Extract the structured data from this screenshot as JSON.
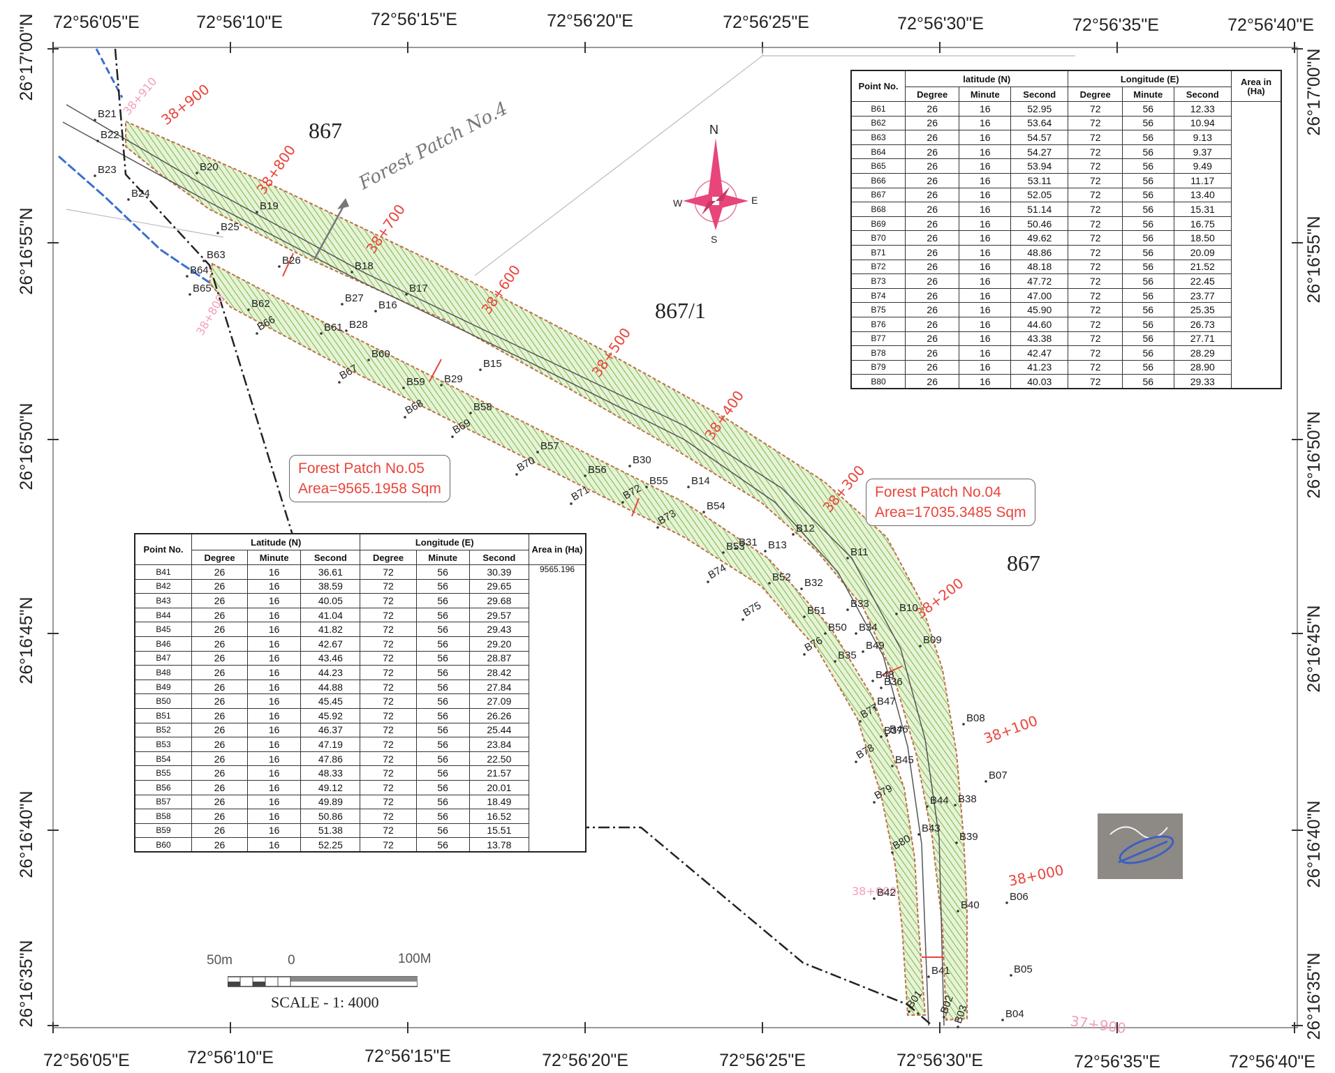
{
  "frame": {
    "top_lon_labels": [
      "72°56'05\"E",
      "72°56'10\"E",
      "72°56'15\"E",
      "72°56'20\"E",
      "72°56'25\"E",
      "72°56'30\"E",
      "72°56'35\"E",
      "72°56'40\"E"
    ],
    "bottom_lon_labels": [
      "72°56'05\"E",
      "72°56'10\"E",
      "72°56'15\"E",
      "72°56'20\"E",
      "72°56'25\"E",
      "72°56'30\"E",
      "72°56'35\"E",
      "72°56'40\"E"
    ],
    "left_lat_labels": [
      "26°17'00\"N",
      "26°16'55\"N",
      "26°16'50\"N",
      "26°16'45\"N",
      "26°16'40\"N",
      "26°16'35\"N"
    ],
    "right_lat_labels": [
      "26°17'00\"N",
      "26°16'55\"N",
      "26°16'50\"N",
      "26°16'45\"N",
      "26°16'40\"N",
      "26°16'35\"N"
    ]
  },
  "parcels": [
    "867",
    "867/1",
    "867"
  ],
  "handwritten_note": "Forest Patch No.4",
  "compass": {
    "n": "N",
    "s": "S",
    "e": "E",
    "w": "W"
  },
  "chainages": [
    "38+900",
    "38+800",
    "38+700",
    "38+600",
    "38+500",
    "38+400",
    "38+300",
    "38+200",
    "38+100",
    "38+000",
    "37+900"
  ],
  "chainages_pink": [
    "38+910",
    "38+800",
    "38+000",
    "37+900"
  ],
  "points_outer": [
    "B21",
    "B22",
    "B23",
    "B24",
    "B20",
    "B19",
    "B25",
    "B26",
    "B18",
    "B17",
    "B27",
    "B16",
    "B28",
    "B15",
    "B29",
    "B30",
    "B14",
    "B13",
    "B31",
    "B12",
    "B11",
    "B32",
    "B33",
    "B10",
    "B34",
    "B09",
    "B35",
    "B36",
    "B08",
    "B37",
    "B07",
    "B38",
    "B39",
    "B06",
    "B40",
    "B05",
    "B41",
    "B04",
    "B02",
    "B03",
    "B01"
  ],
  "points_inner": [
    "B63",
    "B64",
    "B65",
    "B62",
    "B66",
    "B61",
    "B60",
    "B67",
    "B59",
    "B68",
    "B58",
    "B69",
    "B57",
    "B70",
    "B56",
    "B71",
    "B55",
    "B72",
    "B54",
    "B73",
    "B53",
    "B74",
    "B52",
    "B75",
    "B51",
    "B50",
    "B76",
    "B49",
    "B48",
    "B77",
    "B47",
    "B46",
    "B78",
    "B45",
    "B79",
    "B44",
    "B43",
    "B80",
    "B42"
  ],
  "patch05": {
    "line1": "Forest Patch No.05",
    "line2": "Area=9565.1958 Sqm"
  },
  "patch04": {
    "line1": "Forest Patch No.04",
    "line2": "Area=17035.3485 Sqm"
  },
  "table_left": {
    "headers": {
      "point": "Point No.",
      "lat": "Latitude (N)",
      "lon": "Longitude (E)",
      "area": "Area in (Ha)",
      "deg": "Degree",
      "min": "Minute",
      "sec": "Second"
    },
    "area_value": "9565.196",
    "rows": [
      [
        "B41",
        "26",
        "16",
        "36.61",
        "72",
        "56",
        "30.39"
      ],
      [
        "B42",
        "26",
        "16",
        "38.59",
        "72",
        "56",
        "29.65"
      ],
      [
        "B43",
        "26",
        "16",
        "40.05",
        "72",
        "56",
        "29.68"
      ],
      [
        "B44",
        "26",
        "16",
        "41.04",
        "72",
        "56",
        "29.57"
      ],
      [
        "B45",
        "26",
        "16",
        "41.82",
        "72",
        "56",
        "29.43"
      ],
      [
        "B46",
        "26",
        "16",
        "42.67",
        "72",
        "56",
        "29.20"
      ],
      [
        "B47",
        "26",
        "16",
        "43.46",
        "72",
        "56",
        "28.87"
      ],
      [
        "B48",
        "26",
        "16",
        "44.23",
        "72",
        "56",
        "28.42"
      ],
      [
        "B49",
        "26",
        "16",
        "44.88",
        "72",
        "56",
        "27.84"
      ],
      [
        "B50",
        "26",
        "16",
        "45.45",
        "72",
        "56",
        "27.09"
      ],
      [
        "B51",
        "26",
        "16",
        "45.92",
        "72",
        "56",
        "26.26"
      ],
      [
        "B52",
        "26",
        "16",
        "46.37",
        "72",
        "56",
        "25.44"
      ],
      [
        "B53",
        "26",
        "16",
        "47.19",
        "72",
        "56",
        "23.84"
      ],
      [
        "B54",
        "26",
        "16",
        "47.86",
        "72",
        "56",
        "22.50"
      ],
      [
        "B55",
        "26",
        "16",
        "48.33",
        "72",
        "56",
        "21.57"
      ],
      [
        "B56",
        "26",
        "16",
        "49.12",
        "72",
        "56",
        "20.01"
      ],
      [
        "B57",
        "26",
        "16",
        "49.89",
        "72",
        "56",
        "18.49"
      ],
      [
        "B58",
        "26",
        "16",
        "50.86",
        "72",
        "56",
        "16.52"
      ],
      [
        "B59",
        "26",
        "16",
        "51.38",
        "72",
        "56",
        "15.51"
      ],
      [
        "B60",
        "26",
        "16",
        "52.25",
        "72",
        "56",
        "13.78"
      ]
    ]
  },
  "table_right": {
    "headers": {
      "point": "Point No.",
      "lat": "latitude (N)",
      "lon": "Longitude (E)",
      "area": "Area in (Ha)",
      "deg": "Degree",
      "min": "Minute",
      "sec": "Second"
    },
    "area_value": "",
    "rows": [
      [
        "B61",
        "26",
        "16",
        "52.95",
        "72",
        "56",
        "12.33"
      ],
      [
        "B62",
        "26",
        "16",
        "53.64",
        "72",
        "56",
        "10.94"
      ],
      [
        "B63",
        "26",
        "16",
        "54.57",
        "72",
        "56",
        "9.13"
      ],
      [
        "B64",
        "26",
        "16",
        "54.27",
        "72",
        "56",
        "9.37"
      ],
      [
        "B65",
        "26",
        "16",
        "53.94",
        "72",
        "56",
        "9.49"
      ],
      [
        "B66",
        "26",
        "16",
        "53.11",
        "72",
        "56",
        "11.17"
      ],
      [
        "B67",
        "26",
        "16",
        "52.05",
        "72",
        "56",
        "13.40"
      ],
      [
        "B68",
        "26",
        "16",
        "51.14",
        "72",
        "56",
        "15.31"
      ],
      [
        "B69",
        "26",
        "16",
        "50.46",
        "72",
        "56",
        "16.75"
      ],
      [
        "B70",
        "26",
        "16",
        "49.62",
        "72",
        "56",
        "18.50"
      ],
      [
        "B71",
        "26",
        "16",
        "48.86",
        "72",
        "56",
        "20.09"
      ],
      [
        "B72",
        "26",
        "16",
        "48.18",
        "72",
        "56",
        "21.52"
      ],
      [
        "B73",
        "26",
        "16",
        "47.72",
        "72",
        "56",
        "22.45"
      ],
      [
        "B74",
        "26",
        "16",
        "47.00",
        "72",
        "56",
        "23.77"
      ],
      [
        "B75",
        "26",
        "16",
        "45.90",
        "72",
        "56",
        "25.35"
      ],
      [
        "B76",
        "26",
        "16",
        "44.60",
        "72",
        "56",
        "26.73"
      ],
      [
        "B77",
        "26",
        "16",
        "43.38",
        "72",
        "56",
        "27.71"
      ],
      [
        "B78",
        "26",
        "16",
        "42.47",
        "72",
        "56",
        "28.29"
      ],
      [
        "B79",
        "26",
        "16",
        "41.23",
        "72",
        "56",
        "28.90"
      ],
      [
        "B80",
        "26",
        "16",
        "40.03",
        "72",
        "56",
        "29.33"
      ]
    ]
  },
  "scale": {
    "left": "50m",
    "zero": "0",
    "right": "100M",
    "caption": "SCALE - 1: 4000"
  }
}
